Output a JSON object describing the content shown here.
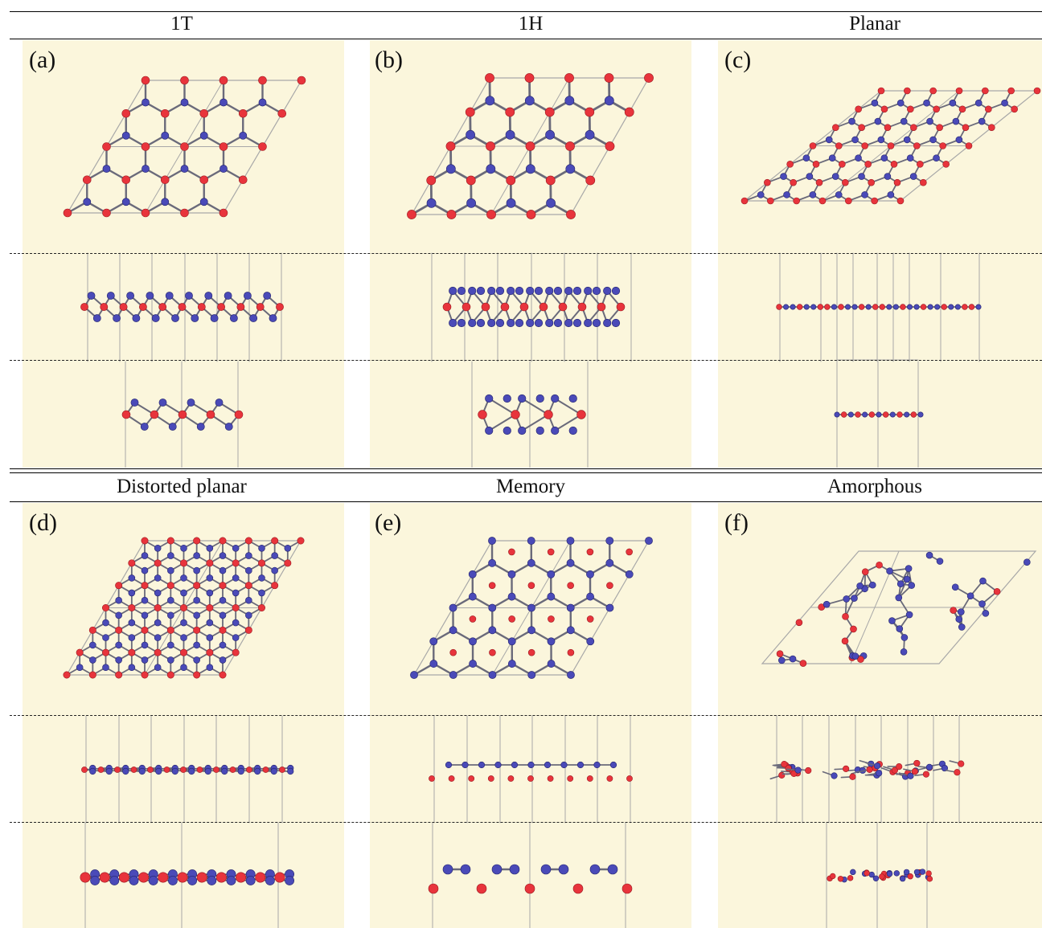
{
  "header_row_1": {
    "columns": [
      {
        "title": "1T",
        "panel_label": "(a)"
      },
      {
        "title": "1H",
        "panel_label": "(b)"
      },
      {
        "title": "Planar",
        "panel_label": "(c)"
      }
    ]
  },
  "header_row_2": {
    "columns": [
      {
        "title": "Distorted planar",
        "panel_label": "(d)"
      },
      {
        "title": "Memory",
        "panel_label": "(e)"
      },
      {
        "title": "Amorphous",
        "panel_label": "(f)"
      }
    ]
  },
  "views_per_structure": [
    "top",
    "side",
    "side (rotated)"
  ],
  "colors": {
    "background": "#fbf6dc",
    "atom_metal": "#e8343c",
    "atom_chalcogen": "#4a4ab8",
    "bond": "#6a6a7a",
    "cell_outline": "#a8a8a8"
  }
}
